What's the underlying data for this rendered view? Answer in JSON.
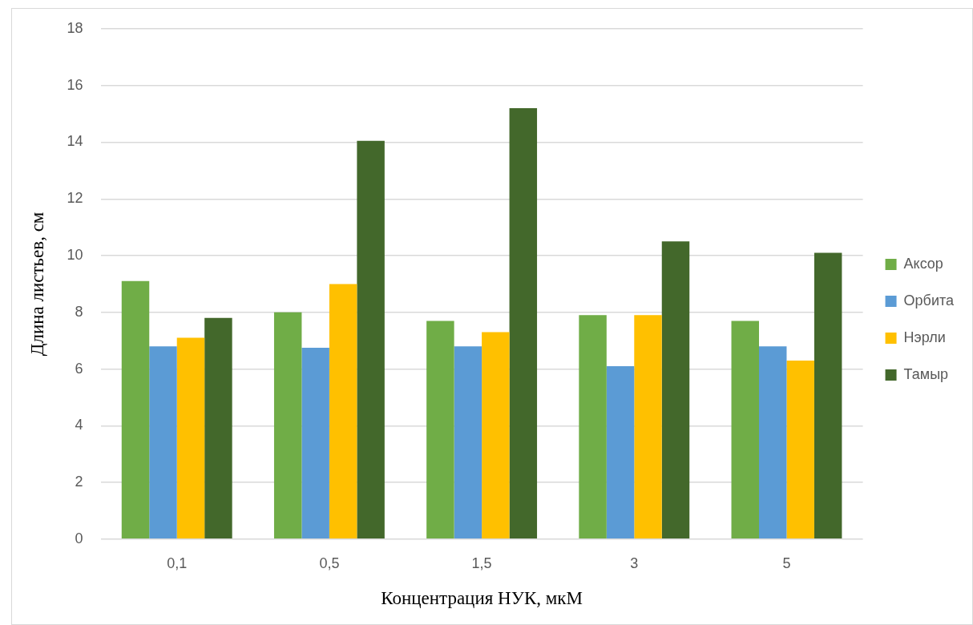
{
  "chart_data": {
    "type": "bar",
    "xlabel": "Концентрация НУК, мкМ",
    "ylabel": "Длина листьев, см",
    "categories": [
      "0,1",
      "0,5",
      "1,5",
      "3",
      "5"
    ],
    "series": [
      {
        "name": "Аксор",
        "color": "#70ad47",
        "values": [
          9.1,
          8.0,
          7.7,
          7.9,
          7.7
        ]
      },
      {
        "name": "Орбита",
        "color": "#5b9bd5",
        "values": [
          6.8,
          6.75,
          6.8,
          6.1,
          6.8
        ]
      },
      {
        "name": "Нэрли",
        "color": "#ffc000",
        "values": [
          7.1,
          9.0,
          7.3,
          7.9,
          6.3
        ]
      },
      {
        "name": "Тамыр",
        "color": "#43682b",
        "values": [
          7.8,
          14.05,
          15.2,
          10.5,
          10.1
        ]
      }
    ],
    "ylim": [
      0,
      18
    ],
    "yticks": [
      0,
      2,
      4,
      6,
      8,
      10,
      12,
      14,
      16,
      18
    ],
    "grid": "y",
    "legend": "right"
  }
}
